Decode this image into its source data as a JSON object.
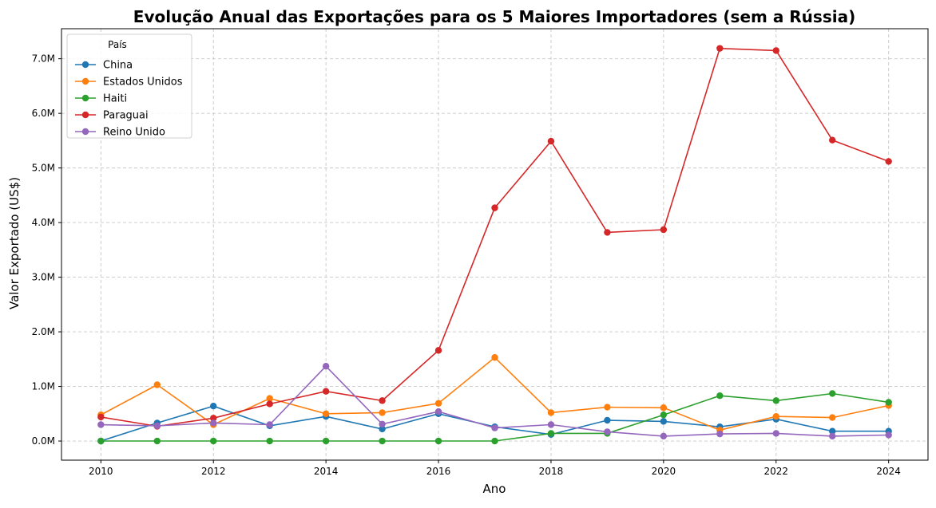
{
  "chart_data": {
    "type": "line",
    "title": "Evolução Anual das Exportações para os 5 Maiores Importadores (sem a Rússia)",
    "xlabel": "Ano",
    "ylabel": "Valor Exportado (US$)",
    "x": [
      2010,
      2011,
      2012,
      2013,
      2014,
      2015,
      2016,
      2017,
      2018,
      2019,
      2020,
      2021,
      2022,
      2023,
      2024
    ],
    "xlim": [
      2009.3,
      2024.7
    ],
    "ylim": [
      -350000,
      7550000
    ],
    "xticks": [
      2010,
      2012,
      2014,
      2016,
      2018,
      2020,
      2022,
      2024
    ],
    "xtick_labels": [
      "2010",
      "2012",
      "2014",
      "2016",
      "2018",
      "2020",
      "2022",
      "2024"
    ],
    "yticks": [
      0,
      1000000,
      2000000,
      3000000,
      4000000,
      5000000,
      6000000,
      7000000
    ],
    "ytick_labels": [
      "0.0M",
      "1.0M",
      "2.0M",
      "3.0M",
      "4.0M",
      "5.0M",
      "6.0M",
      "7.0M"
    ],
    "grid": true,
    "legend_title": "País",
    "legend_position": "top-left",
    "series": [
      {
        "name": "China",
        "color": "#1f77b4",
        "values": [
          0,
          330000,
          640000,
          280000,
          450000,
          220000,
          500000,
          260000,
          120000,
          380000,
          360000,
          260000,
          400000,
          180000,
          180000
        ]
      },
      {
        "name": "Estados Unidos",
        "color": "#ff7f0e",
        "values": [
          480000,
          1030000,
          300000,
          780000,
          500000,
          520000,
          690000,
          1530000,
          520000,
          620000,
          610000,
          200000,
          450000,
          430000,
          650000
        ]
      },
      {
        "name": "Haiti",
        "color": "#2ca02c",
        "values": [
          0,
          0,
          0,
          0,
          0,
          0,
          0,
          0,
          140000,
          140000,
          480000,
          830000,
          740000,
          870000,
          710000
        ]
      },
      {
        "name": "Paraguai",
        "color": "#d62728",
        "values": [
          440000,
          270000,
          420000,
          680000,
          910000,
          740000,
          1660000,
          4270000,
          5490000,
          3820000,
          3870000,
          7190000,
          7150000,
          5510000,
          5120000
        ]
      },
      {
        "name": "Reino Unido",
        "color": "#9467bd",
        "values": [
          300000,
          280000,
          330000,
          300000,
          1370000,
          310000,
          540000,
          240000,
          300000,
          170000,
          90000,
          130000,
          140000,
          90000,
          110000
        ]
      }
    ]
  }
}
